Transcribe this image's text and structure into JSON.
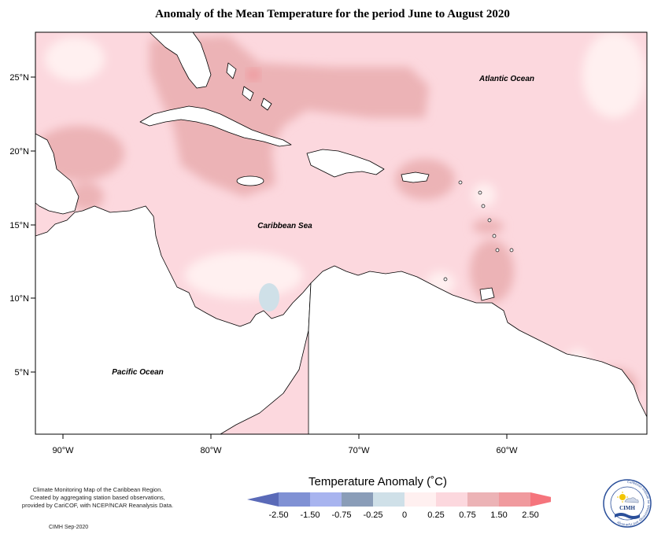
{
  "title": "Anomaly of the Mean Temperature for the period June to August 2020",
  "axes": {
    "lat_ticks": [
      "25°N",
      "20°N",
      "15°N",
      "10°N",
      "5°N"
    ],
    "lon_ticks": [
      "90°W",
      "80°W",
      "70°W",
      "60°W"
    ]
  },
  "places": {
    "atlantic": "Atlantic Ocean",
    "caribbean": "Caribbean Sea",
    "pacific": "Pacific Ocean"
  },
  "legend": {
    "title": "Temperature Anomaly (˚C)",
    "labels": [
      "-2.50",
      "-1.50",
      "-0.75",
      "-0.25",
      "0",
      "0.25",
      "0.75",
      "1.50",
      "2.50"
    ],
    "colors": [
      "#5a6ab8",
      "#8091d4",
      "#a8b4ef",
      "#8a9db8",
      "#cfe0e8",
      "#fff0f0",
      "#fcd8de",
      "#ecb3b6",
      "#f09a9e",
      "#f5747c"
    ]
  },
  "credits": {
    "lines": [
      "Climate Monitoring Map of the Caribbean Region.",
      "Created by aggregating station based observations,",
      "provided by CariCOF, with NCEP/NCAR Reanalysis Data."
    ],
    "issued": "CIMH Sep-2020"
  },
  "logo": {
    "text": "CIMH",
    "ring_text": "Caribbean Institute for Meteorology and Hydrology"
  }
}
